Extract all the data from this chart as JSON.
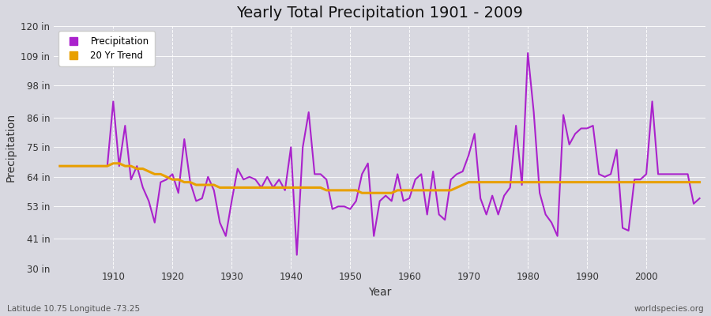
{
  "title": "Yearly Total Precipitation 1901 - 2009",
  "xlabel": "Year",
  "ylabel": "Precipitation",
  "subtitle_left": "Latitude 10.75 Longitude -73.25",
  "subtitle_right": "worldspecies.org",
  "bg_color": "#d8d8e0",
  "plot_bg_color": "#d8d8e0",
  "precip_color": "#aa22cc",
  "trend_color": "#e8a000",
  "ylim": [
    30,
    120
  ],
  "yticks": [
    30,
    41,
    53,
    64,
    75,
    86,
    98,
    109,
    120
  ],
  "ytick_labels": [
    "30 in",
    "41 in",
    "53 in",
    "64 in",
    "75 in",
    "86 in",
    "98 in",
    "109 in",
    "120 in"
  ],
  "years": [
    1901,
    1902,
    1903,
    1904,
    1905,
    1906,
    1907,
    1908,
    1909,
    1910,
    1911,
    1912,
    1913,
    1914,
    1915,
    1916,
    1917,
    1918,
    1919,
    1920,
    1921,
    1922,
    1923,
    1924,
    1925,
    1926,
    1927,
    1928,
    1929,
    1930,
    1931,
    1932,
    1933,
    1934,
    1935,
    1936,
    1937,
    1938,
    1939,
    1940,
    1941,
    1942,
    1943,
    1944,
    1945,
    1946,
    1947,
    1948,
    1949,
    1950,
    1951,
    1952,
    1953,
    1954,
    1955,
    1956,
    1957,
    1958,
    1959,
    1960,
    1961,
    1962,
    1963,
    1964,
    1965,
    1966,
    1967,
    1968,
    1969,
    1970,
    1971,
    1972,
    1973,
    1974,
    1975,
    1976,
    1977,
    1978,
    1979,
    1980,
    1981,
    1982,
    1983,
    1984,
    1985,
    1986,
    1987,
    1988,
    1989,
    1990,
    1991,
    1992,
    1993,
    1994,
    1995,
    1996,
    1997,
    1998,
    1999,
    2000,
    2001,
    2002,
    2003,
    2004,
    2005,
    2006,
    2007,
    2008,
    2009
  ],
  "precip": [
    68,
    68,
    68,
    68,
    68,
    68,
    68,
    68,
    68,
    92,
    68,
    83,
    63,
    68,
    60,
    55,
    47,
    62,
    63,
    65,
    58,
    78,
    62,
    55,
    56,
    64,
    59,
    47,
    42,
    55,
    67,
    63,
    64,
    63,
    60,
    64,
    60,
    63,
    59,
    75,
    35,
    75,
    88,
    65,
    65,
    63,
    52,
    53,
    53,
    52,
    55,
    65,
    69,
    42,
    55,
    57,
    55,
    65,
    55,
    56,
    63,
    65,
    50,
    66,
    50,
    48,
    63,
    65,
    66,
    72,
    80,
    56,
    50,
    57,
    50,
    57,
    60,
    83,
    61,
    110,
    88,
    58,
    50,
    47,
    42,
    87,
    76,
    80,
    82,
    82,
    83,
    65,
    64,
    65,
    74,
    45,
    44,
    63,
    63,
    65,
    92,
    65,
    65,
    65,
    65,
    65,
    65,
    54,
    56
  ],
  "trend": [
    68,
    68,
    68,
    68,
    68,
    68,
    68,
    68,
    68,
    69,
    69,
    68,
    68,
    67,
    67,
    66,
    65,
    65,
    64,
    63,
    63,
    62,
    62,
    61,
    61,
    61,
    61,
    60,
    60,
    60,
    60,
    60,
    60,
    60,
    60,
    60,
    60,
    60,
    60,
    60,
    60,
    60,
    60,
    60,
    60,
    59,
    59,
    59,
    59,
    59,
    59,
    58,
    58,
    58,
    58,
    58,
    58,
    59,
    59,
    59,
    59,
    59,
    59,
    59,
    59,
    59,
    59,
    60,
    61,
    62,
    62,
    62,
    62,
    62,
    62,
    62,
    62,
    62,
    62,
    62,
    62,
    62,
    62,
    62,
    62,
    62,
    62,
    62,
    62,
    62,
    62,
    62,
    62,
    62,
    62,
    62,
    62,
    62,
    62,
    62,
    62,
    62,
    62,
    62,
    62,
    62,
    62,
    62,
    62
  ]
}
